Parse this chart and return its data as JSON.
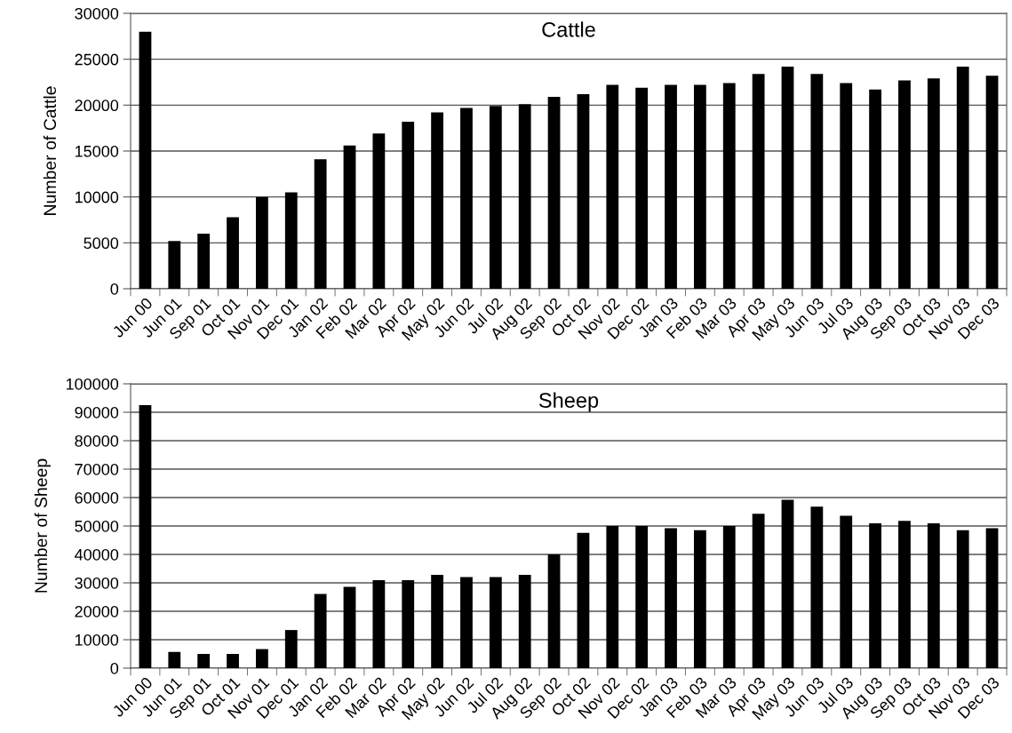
{
  "chart_data": [
    {
      "type": "bar",
      "title": "Cattle",
      "ylabel": "Number of Cattle",
      "categories": [
        "Jun 00",
        "Jun 01",
        "Sep 01",
        "Oct 01",
        "Nov 01",
        "Dec 01",
        "Jan 02",
        "Feb 02",
        "Mar 02",
        "Apr 02",
        "May 02",
        "Jun 02",
        "Jul 02",
        "Aug 02",
        "Sep 02",
        "Oct 02",
        "Nov 02",
        "Dec 02",
        "Jan 03",
        "Feb 03",
        "Mar 03",
        "Apr 03",
        "May 03",
        "Jun 03",
        "Jul 03",
        "Aug 03",
        "Sep 03",
        "Oct 03",
        "Nov 03",
        "Dec 03"
      ],
      "values": [
        28000,
        5200,
        6000,
        7800,
        10000,
        10500,
        14100,
        15600,
        16900,
        18200,
        19200,
        19700,
        19900,
        20100,
        20900,
        21200,
        22200,
        21900,
        22200,
        22200,
        22400,
        23400,
        24200,
        23400,
        22400,
        21700,
        22700,
        22900,
        24200,
        23200
      ],
      "color": "#000000",
      "ylim": [
        0,
        30000
      ],
      "yticks": [
        0,
        5000,
        10000,
        15000,
        20000,
        25000,
        30000
      ],
      "grid": "y"
    },
    {
      "type": "bar",
      "title": "Sheep",
      "ylabel": "Number of Sheep",
      "categories": [
        "Jun 00",
        "Jun 01",
        "Sep 01",
        "Oct 01",
        "Nov 01",
        "Dec 01",
        "Jan 02",
        "Feb 02",
        "Mar 02",
        "Apr 02",
        "May 02",
        "Jun 02",
        "Jul 02",
        "Aug 02",
        "Sep 02",
        "Oct 02",
        "Nov 02",
        "Dec 02",
        "Jan 03",
        "Feb 03",
        "Mar 03",
        "Apr 03",
        "May 03",
        "Jun 03",
        "Jul 03",
        "Aug 03",
        "Sep 03",
        "Oct 03",
        "Nov 03",
        "Dec 03"
      ],
      "values": [
        92500,
        5700,
        5000,
        5000,
        6700,
        13400,
        26100,
        28600,
        30900,
        30900,
        32800,
        32000,
        32000,
        32800,
        40000,
        47600,
        50000,
        50000,
        49200,
        48500,
        50000,
        54300,
        59200,
        56800,
        53600,
        50900,
        51800,
        50900,
        48500,
        49200
      ],
      "color": "#000000",
      "ylim": [
        0,
        100000
      ],
      "yticks": [
        0,
        10000,
        20000,
        30000,
        40000,
        50000,
        60000,
        70000,
        80000,
        90000,
        100000
      ],
      "grid": "y"
    }
  ]
}
